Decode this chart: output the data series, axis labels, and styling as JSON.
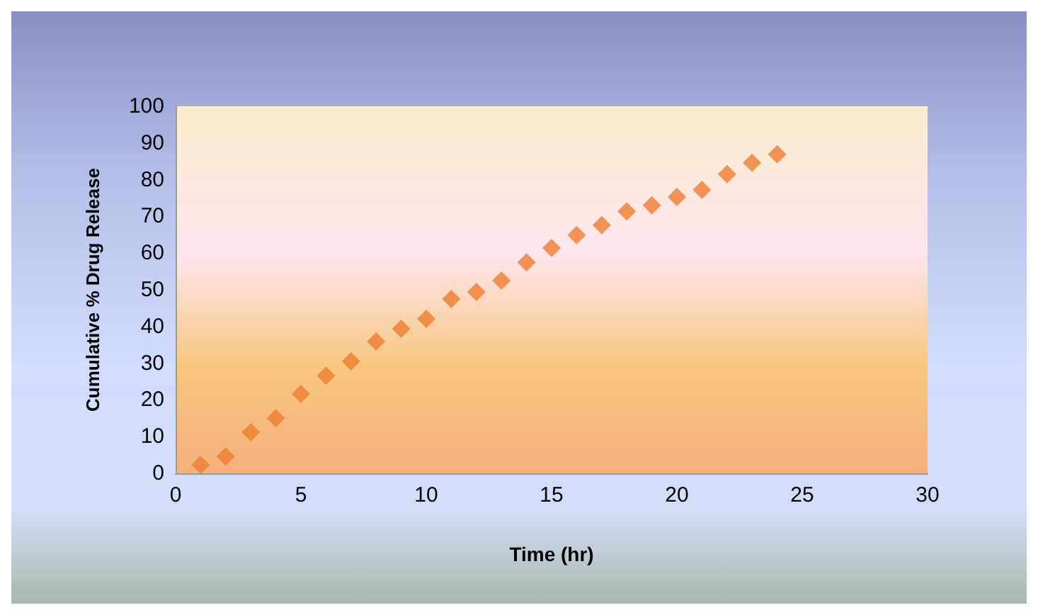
{
  "chart_data": {
    "type": "scatter",
    "xlabel": "Time (hr)",
    "ylabel": "Cumulative % Drug Release",
    "x": [
      1,
      2,
      3,
      4,
      5,
      6,
      7,
      8,
      9,
      10,
      11,
      12,
      13,
      14,
      15,
      16,
      17,
      18,
      19,
      20,
      21,
      22,
      23,
      24
    ],
    "values": [
      2.3,
      4.6,
      11.2,
      15,
      21.6,
      26.6,
      30.5,
      35.9,
      39.4,
      42.1,
      47.5,
      49.4,
      52.5,
      57.5,
      61.4,
      64.9,
      67.6,
      71.4,
      73,
      75.3,
      77.2,
      81.5,
      84.6,
      86.9
    ],
    "color": "#ed7d31",
    "marker": "diamond",
    "xlim": [
      0,
      30
    ],
    "xticks": [
      0,
      5,
      10,
      15,
      20,
      25,
      30
    ],
    "ylim": [
      0,
      100
    ],
    "yticks": [
      0,
      10,
      20,
      30,
      40,
      50,
      60,
      70,
      80,
      90,
      100
    ],
    "grid": false
  }
}
